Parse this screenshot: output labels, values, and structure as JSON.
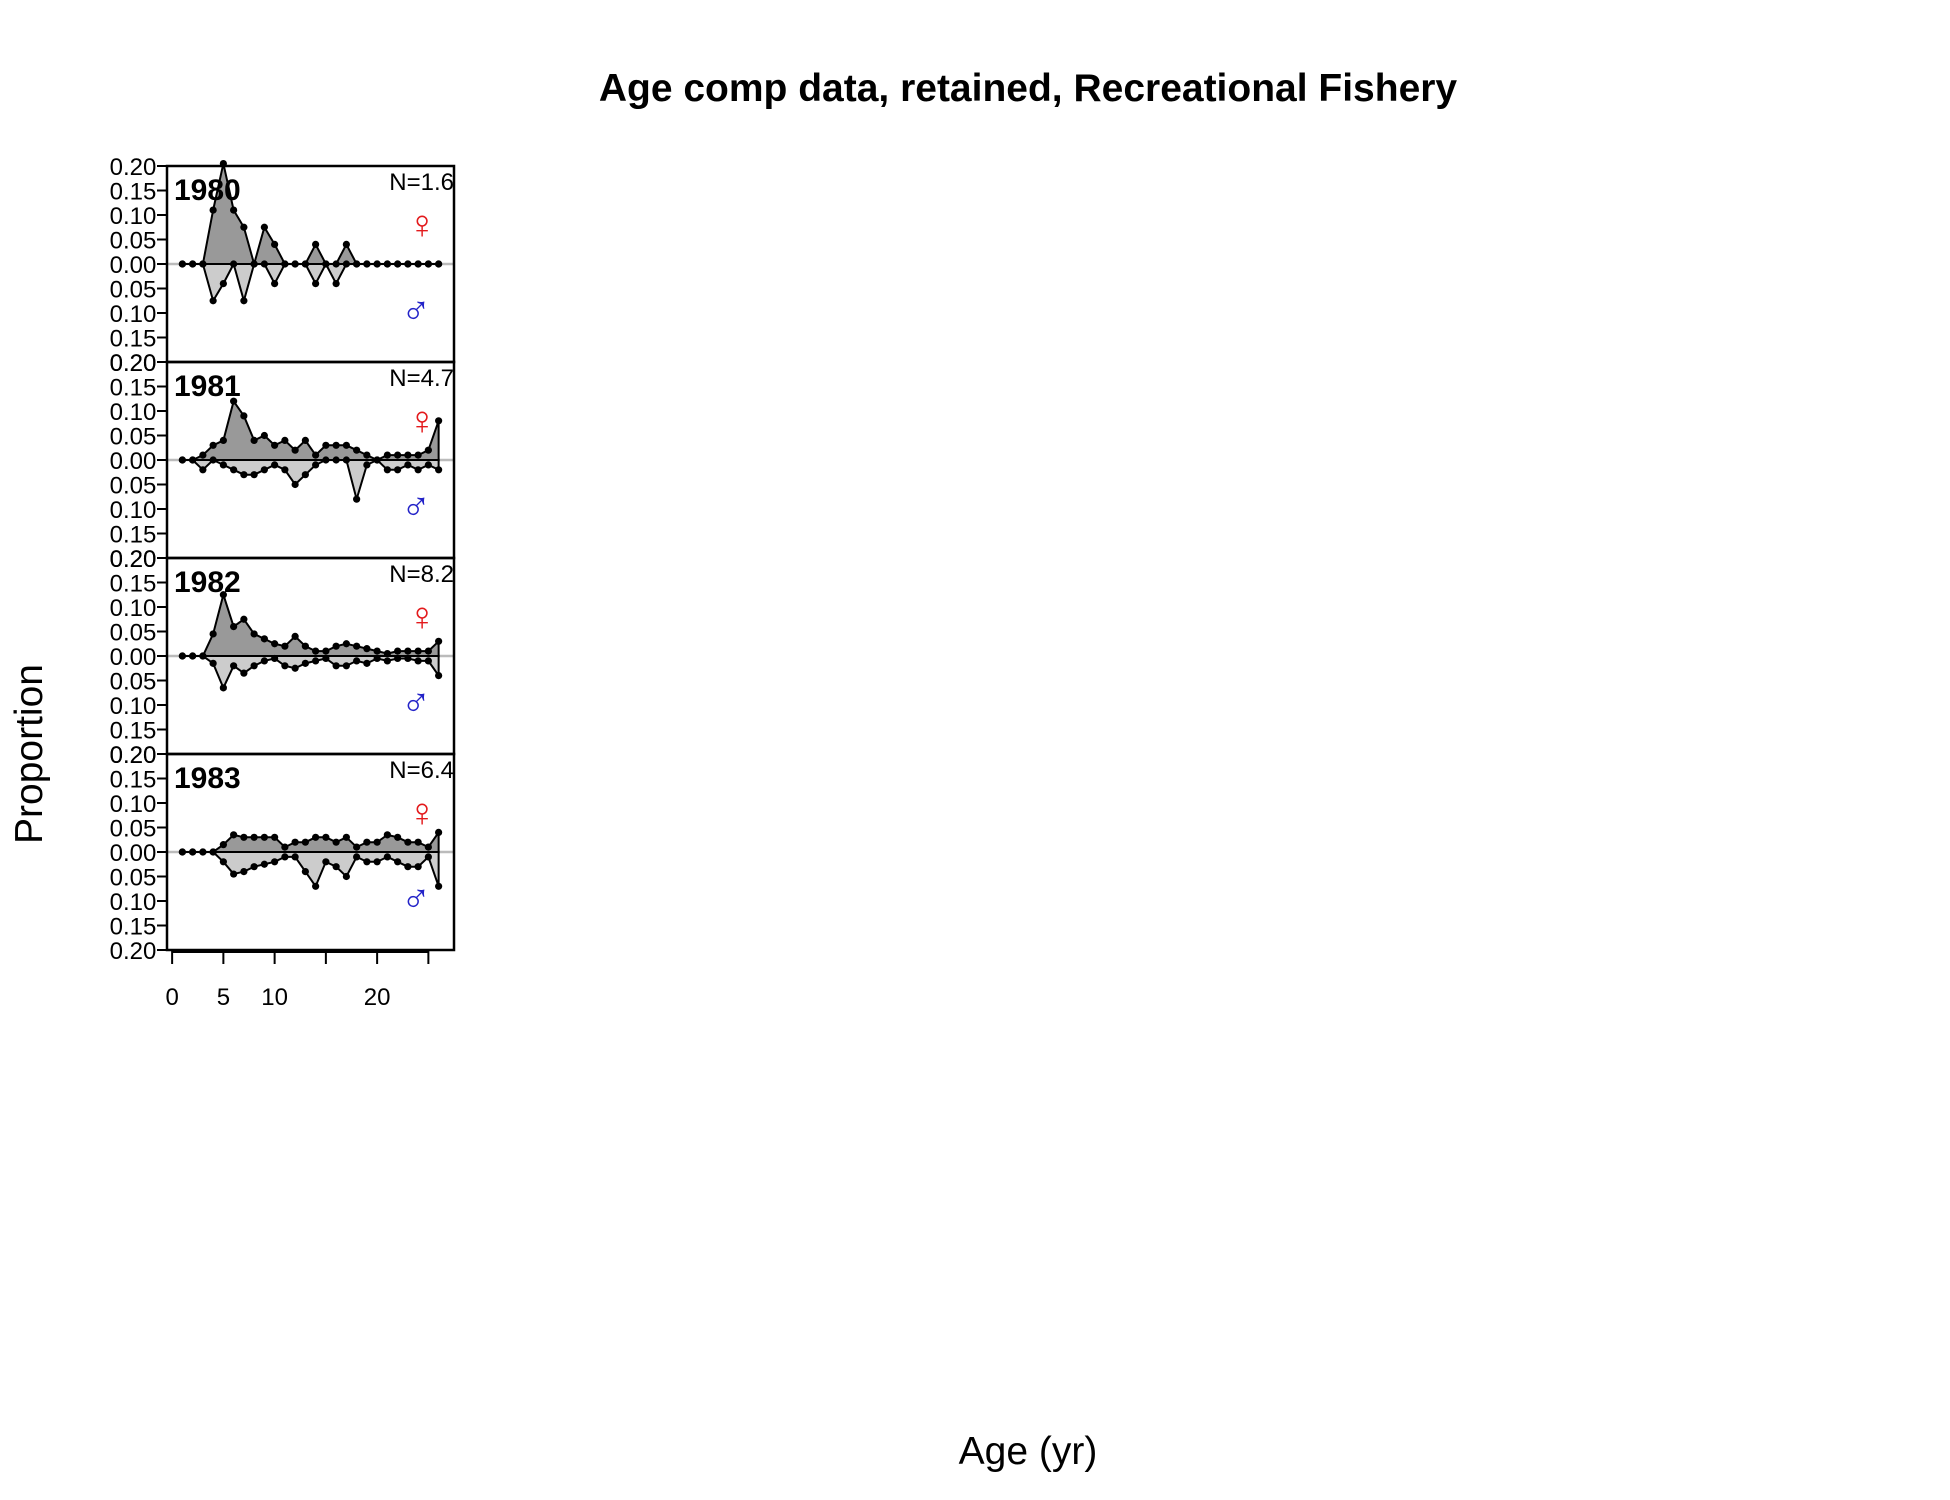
{
  "chart_data": {
    "type": "area",
    "title": "Age comp data, retained, Recreational Fishery",
    "xlabel": "Age (yr)",
    "ylabel": "Proportion",
    "xlim": [
      -0.5,
      27.5
    ],
    "ylim": [
      -0.2,
      0.2
    ],
    "x_ticks": [
      0,
      5,
      10,
      20
    ],
    "y_tick_labels": [
      "0.20",
      "0.15",
      "0.10",
      "0.05",
      "0.00",
      "0.05",
      "0.10",
      "0.15",
      "0.20"
    ],
    "ages": [
      1,
      2,
      3,
      4,
      5,
      6,
      7,
      8,
      9,
      10,
      11,
      12,
      13,
      14,
      15,
      16,
      17,
      18,
      19,
      20,
      21,
      22,
      23,
      24,
      25,
      26
    ],
    "female_symbol": "♀",
    "male_symbol": "♂",
    "colors": {
      "female_fill": "#999999",
      "male_fill": "#cccccc",
      "female_symbol": "#e31a1c",
      "male_symbol": "#2323c8",
      "zero_line": "#bbbbbb",
      "points": "#000000"
    },
    "panels": [
      {
        "year": "1980",
        "n_label": "N=1.6",
        "female": [
          0,
          0,
          0,
          0.11,
          0.205,
          0.11,
          0.075,
          0,
          0.075,
          0.04,
          0,
          0,
          0,
          0.04,
          0,
          0,
          0.04,
          0,
          0,
          0,
          0,
          0,
          0,
          0,
          0,
          0
        ],
        "male": [
          0,
          0,
          0,
          0.075,
          0.04,
          0,
          0.075,
          0,
          0,
          0.04,
          0,
          0,
          0,
          0.04,
          0,
          0.04,
          0,
          0,
          0,
          0,
          0,
          0,
          0,
          0,
          0,
          0
        ]
      },
      {
        "year": "1981",
        "n_label": "N=4.7",
        "female": [
          0,
          0,
          0.01,
          0.03,
          0.04,
          0.12,
          0.09,
          0.04,
          0.05,
          0.03,
          0.04,
          0.02,
          0.04,
          0.01,
          0.03,
          0.03,
          0.03,
          0.02,
          0.01,
          0,
          0.01,
          0.01,
          0.01,
          0.01,
          0.02,
          0.08
        ],
        "male": [
          0,
          0,
          0.02,
          0,
          0.01,
          0.02,
          0.03,
          0.03,
          0.02,
          0.01,
          0.02,
          0.05,
          0.03,
          0.01,
          0,
          0,
          0,
          0.08,
          0.01,
          0,
          0.02,
          0.02,
          0.01,
          0.02,
          0.01,
          0.02
        ]
      },
      {
        "year": "1982",
        "n_label": "N=8.2",
        "female": [
          0,
          0,
          0,
          0.045,
          0.125,
          0.06,
          0.075,
          0.045,
          0.035,
          0.025,
          0.02,
          0.04,
          0.02,
          0.01,
          0.01,
          0.02,
          0.025,
          0.02,
          0.015,
          0.01,
          0.005,
          0.01,
          0.01,
          0.01,
          0.01,
          0.03
        ],
        "male": [
          0,
          0,
          0,
          0.015,
          0.065,
          0.02,
          0.035,
          0.02,
          0.01,
          0.005,
          0.02,
          0.025,
          0.015,
          0.01,
          0.005,
          0.02,
          0.02,
          0.01,
          0.015,
          0.005,
          0.01,
          0.005,
          0.005,
          0.01,
          0.01,
          0.04
        ]
      },
      {
        "year": "1983",
        "n_label": "N=6.4",
        "female": [
          0,
          0,
          0,
          0,
          0.015,
          0.035,
          0.03,
          0.03,
          0.03,
          0.03,
          0.01,
          0.02,
          0.02,
          0.03,
          0.03,
          0.02,
          0.03,
          0.01,
          0.02,
          0.02,
          0.035,
          0.03,
          0.02,
          0.02,
          0.01,
          0.04
        ],
        "male": [
          0,
          0,
          0,
          0,
          0.02,
          0.045,
          0.04,
          0.03,
          0.025,
          0.02,
          0.01,
          0.01,
          0.04,
          0.07,
          0.02,
          0.03,
          0.05,
          0.01,
          0.02,
          0.02,
          0.01,
          0.02,
          0.03,
          0.03,
          0.01,
          0.07
        ]
      }
    ]
  }
}
